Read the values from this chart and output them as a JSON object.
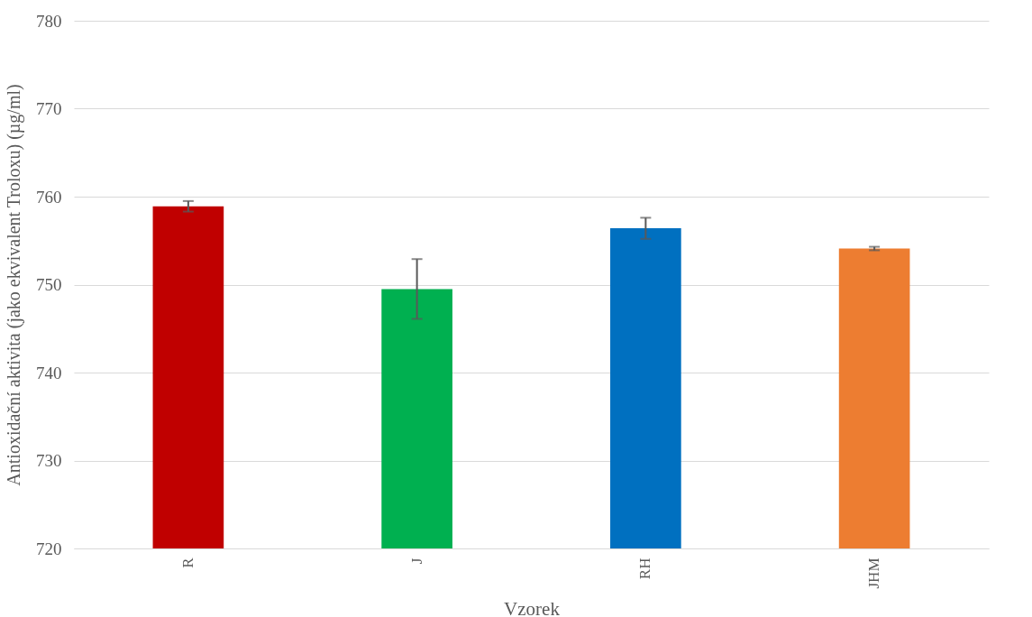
{
  "chart_data": {
    "type": "bar",
    "xlabel": "Vzorek",
    "ylabel": "Antioxidační aktivita (jako ekvivalent Troloxu) (µg/ml)",
    "categories": [
      "R",
      "J",
      "RH",
      "JHM"
    ],
    "values": [
      758.9,
      749.5,
      756.4,
      754.1
    ],
    "errors": [
      0.6,
      3.4,
      1.2,
      0.2
    ],
    "colors": [
      "#c00000",
      "#00b050",
      "#0070c0",
      "#ed7d31"
    ],
    "ylim": [
      720,
      780
    ],
    "yticks": [
      720,
      730,
      740,
      750,
      760,
      770,
      780
    ],
    "grid": "y"
  }
}
